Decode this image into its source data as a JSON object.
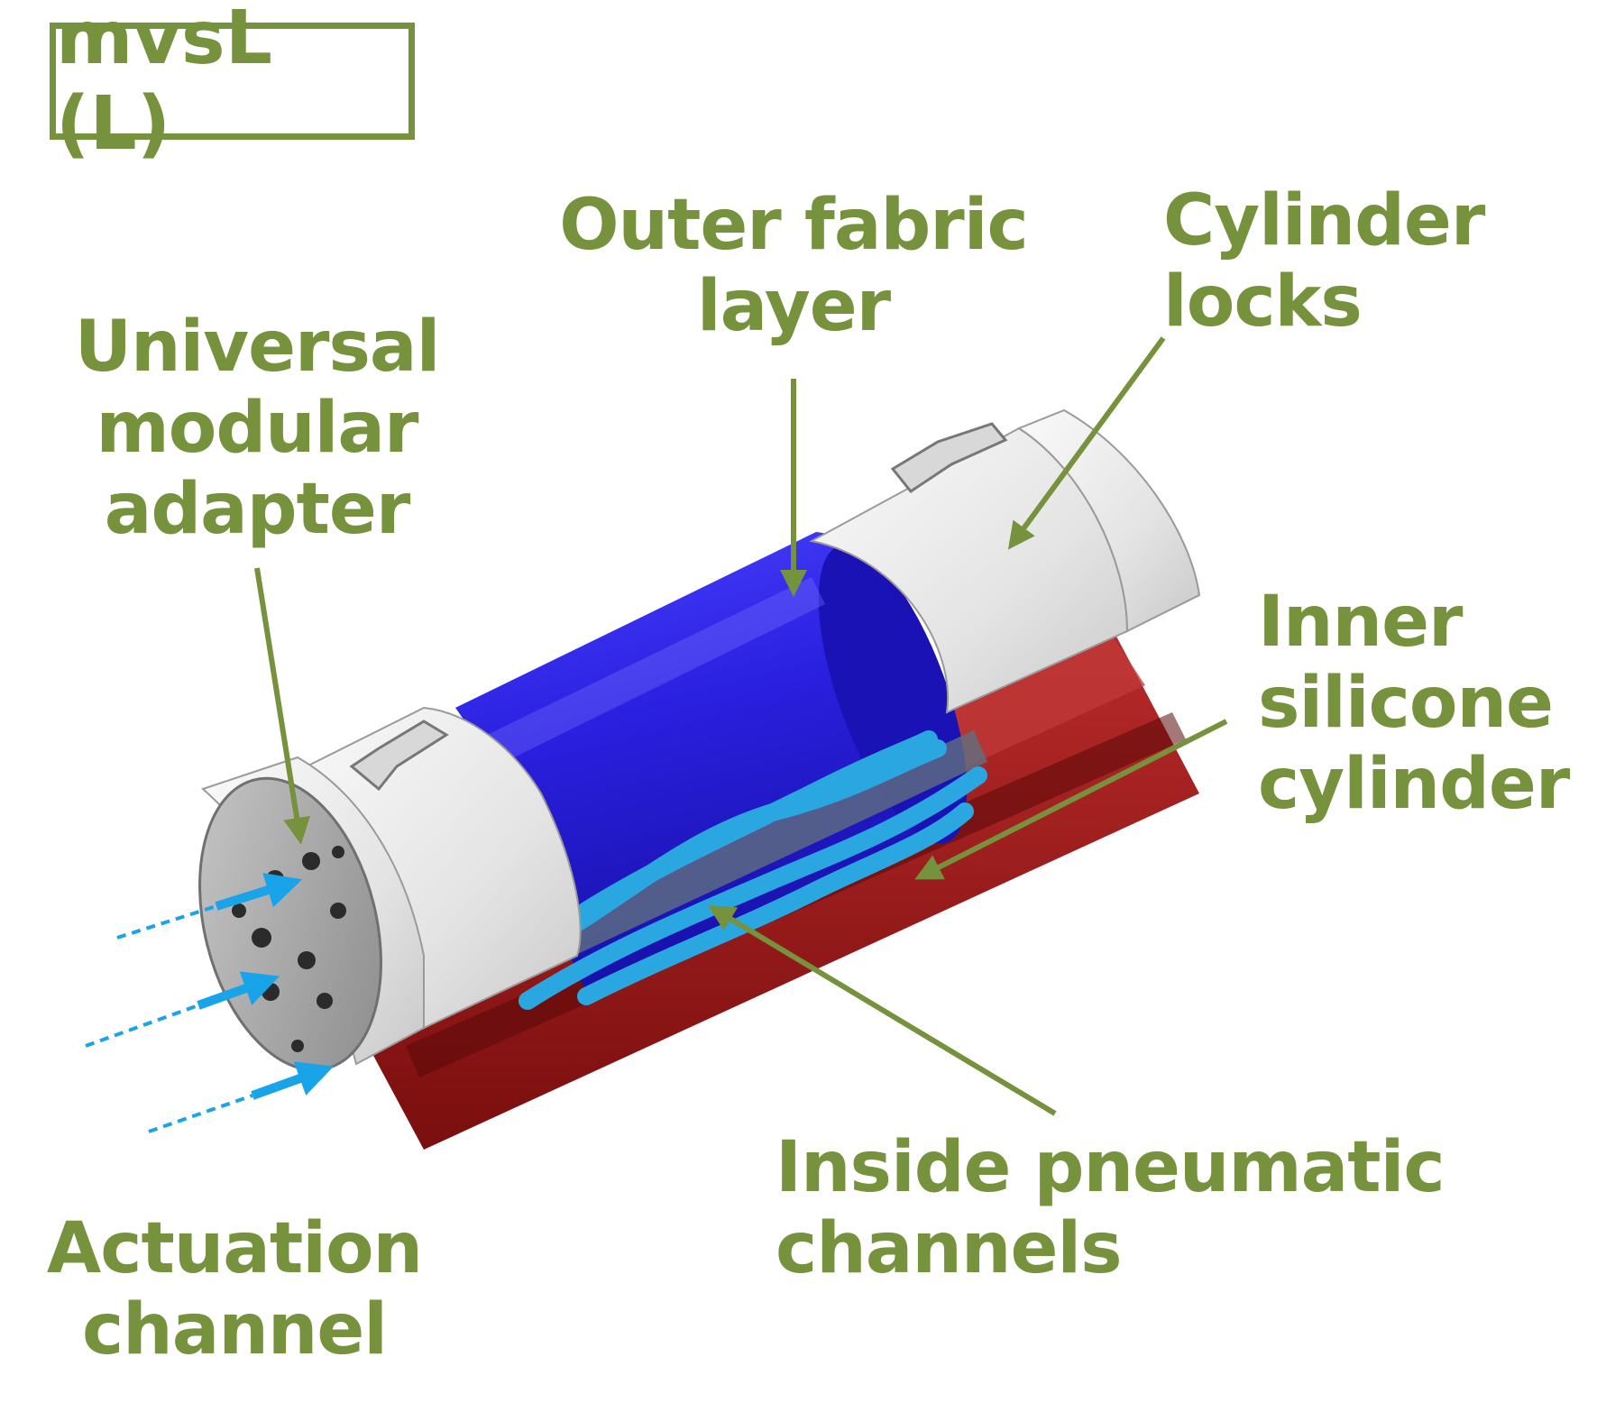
{
  "title": "mvsL (L)",
  "labels": {
    "outer_fabric": [
      "Outer fabric",
      "layer"
    ],
    "cylinder_locks": [
      "Cylinder",
      "locks"
    ],
    "universal_adapter": [
      "Universal",
      "modular",
      "adapter"
    ],
    "inner_silicone": [
      "Inner",
      "silicone",
      "cylinder"
    ],
    "inside_pneumatic": [
      "Inside pneumatic",
      "channels"
    ],
    "actuation": [
      "Actuation",
      "channel"
    ]
  },
  "colors": {
    "label_green": "#76923c",
    "fabric_blue": "#2a22d8",
    "silicone_red": "#9e1a1a",
    "lock_white": "#e6e6e6",
    "channel_cyan": "#2aa6e0",
    "arrow_cyan": "#19a4ea"
  }
}
